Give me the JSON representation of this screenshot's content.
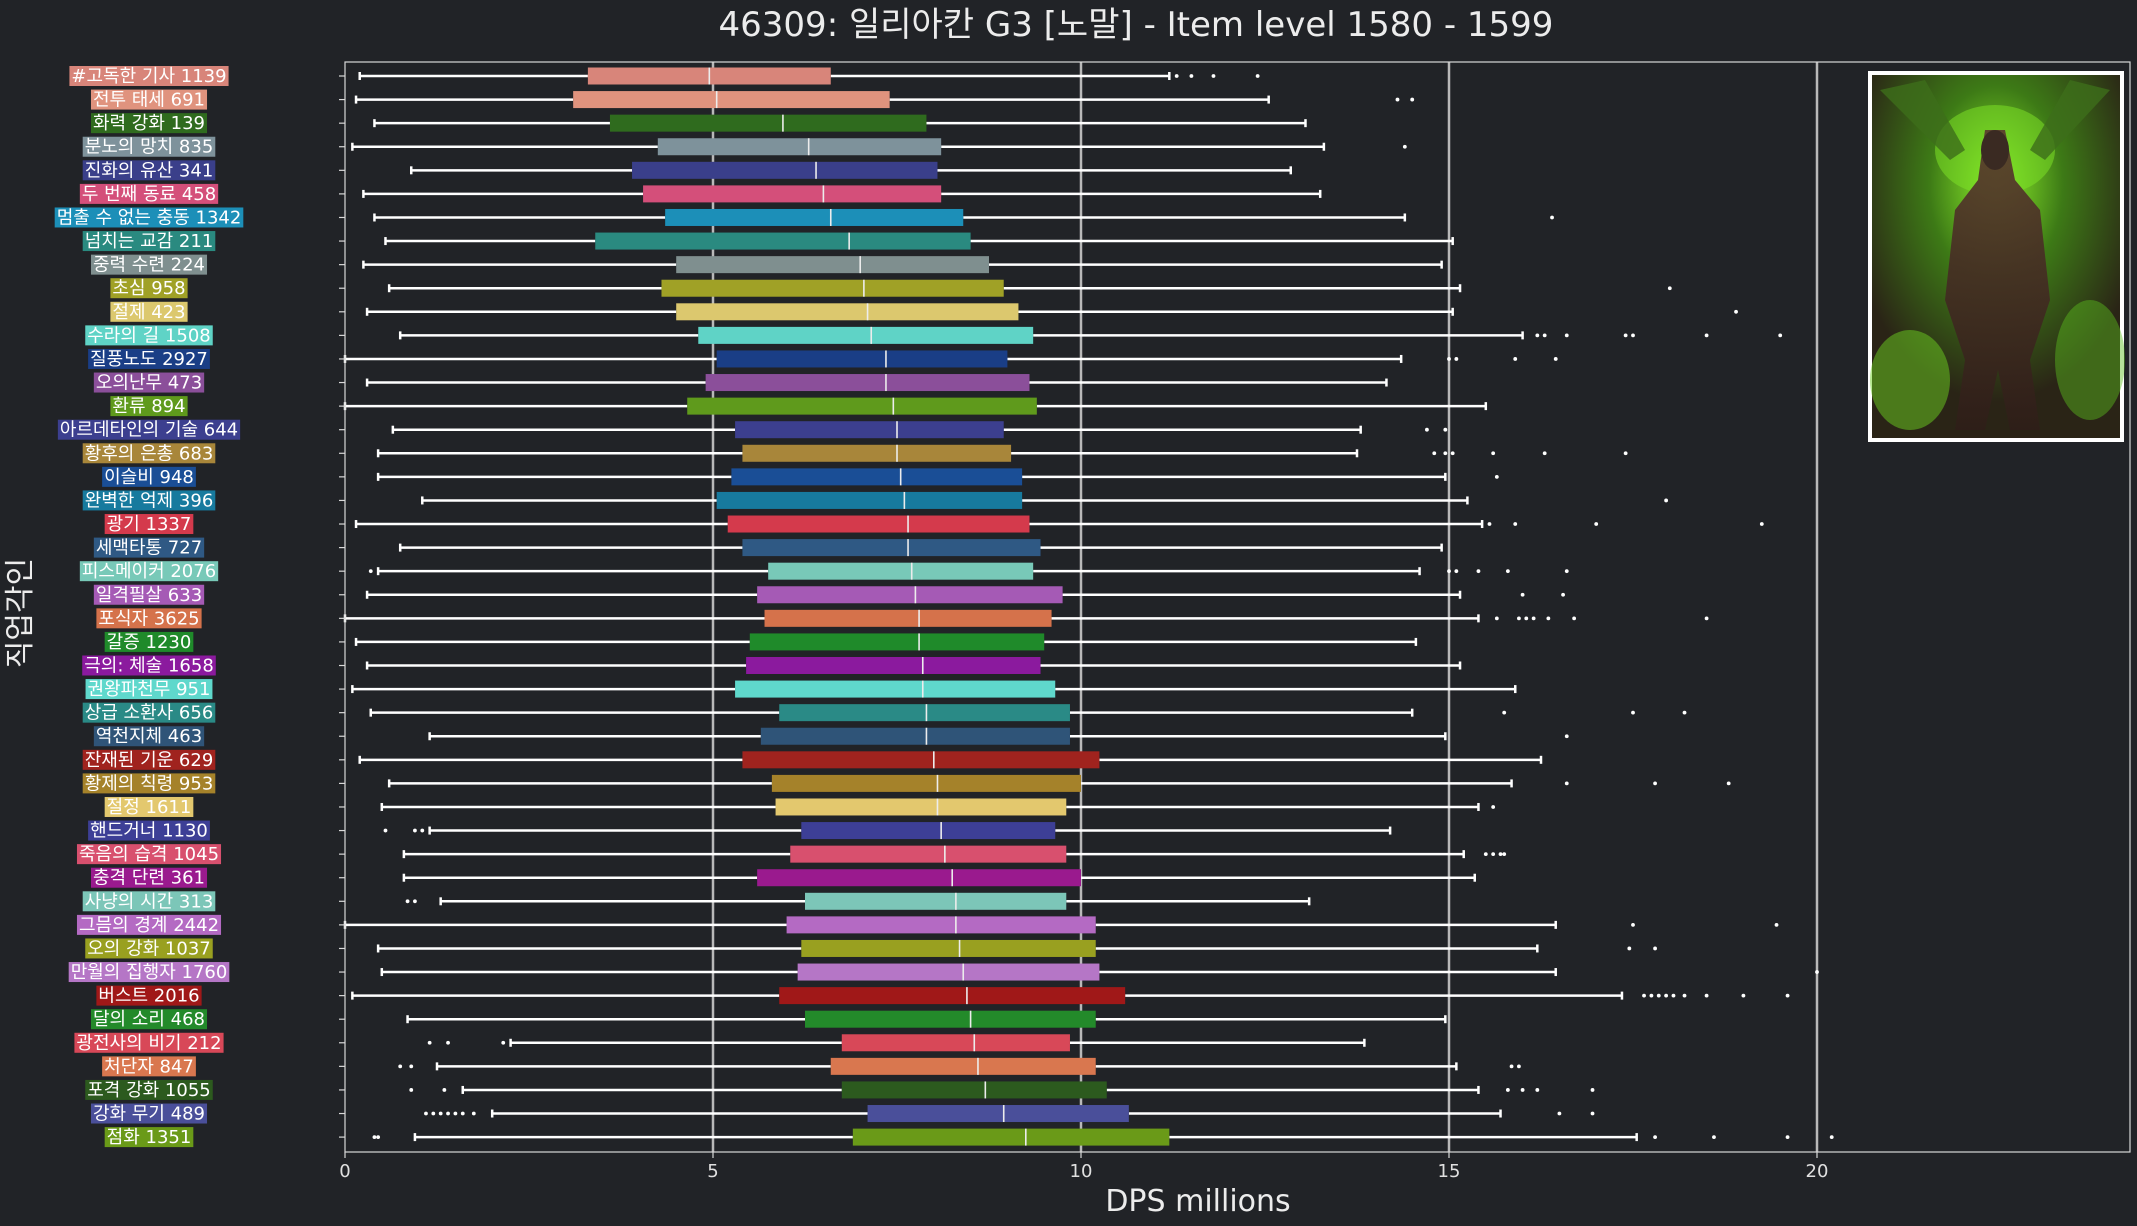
{
  "chart_data": {
    "type": "boxplot",
    "orientation": "horizontal",
    "title": "46309: 일리아칸 G3 [노말] - Item level 1580 - 1599",
    "xlabel": "DPS millions",
    "ylabel": "직업각인",
    "xlim": [
      0,
      24.3
    ],
    "xticks": [
      0,
      5,
      10,
      15,
      20
    ],
    "grid": "vertical lines at 5, 10, 15, 20",
    "legend": "none",
    "inset_image": "boss-portrait",
    "series": [
      {
        "label": "#고독한 기사 1139",
        "color": "#d8857a",
        "whislo": 0.2,
        "q1": 3.3,
        "med": 4.95,
        "q3": 6.6,
        "whishi": 11.2,
        "fliers": [
          11.3,
          11.5,
          11.8,
          12.4
        ]
      },
      {
        "label": "전투 태세 691",
        "color": "#e0937e",
        "whislo": 0.15,
        "q1": 3.1,
        "med": 5.05,
        "q3": 7.4,
        "whishi": 12.55,
        "fliers": [
          14.3,
          14.5
        ]
      },
      {
        "label": "화력 강화 139",
        "color": "#2f6b1e",
        "whislo": 0.4,
        "q1": 3.6,
        "med": 5.95,
        "q3": 7.9,
        "whishi": 13.05,
        "fliers": []
      },
      {
        "label": "분노의 망치 835",
        "color": "#7e929b",
        "whislo": 0.1,
        "q1": 4.25,
        "med": 6.3,
        "q3": 8.1,
        "whishi": 13.3,
        "fliers": [
          14.4
        ]
      },
      {
        "label": "진화의 유산 341",
        "color": "#3a3f8a",
        "whislo": 0.9,
        "q1": 3.9,
        "med": 6.4,
        "q3": 8.05,
        "whishi": 12.85,
        "fliers": []
      },
      {
        "label": "두 번째 동료 458",
        "color": "#d44f7a",
        "whislo": 0.25,
        "q1": 4.05,
        "med": 6.5,
        "q3": 8.1,
        "whishi": 13.25,
        "fliers": []
      },
      {
        "label": "멈출 수 없는 충동 1342",
        "color": "#1c8fb8",
        "whislo": 0.4,
        "q1": 4.35,
        "med": 6.6,
        "q3": 8.4,
        "whishi": 14.4,
        "fliers": [
          16.4
        ]
      },
      {
        "label": "넘치는 교감 211",
        "color": "#2a8a80",
        "whislo": 0.55,
        "q1": 3.4,
        "med": 6.85,
        "q3": 8.5,
        "whishi": 15.05,
        "fliers": []
      },
      {
        "label": "중력 수련 224",
        "color": "#7f8f8f",
        "whislo": 0.25,
        "q1": 4.5,
        "med": 7.0,
        "q3": 8.75,
        "whishi": 14.9,
        "fliers": []
      },
      {
        "label": "초심 958",
        "color": "#a0a126",
        "whislo": 0.6,
        "q1": 4.3,
        "med": 7.05,
        "q3": 8.95,
        "whishi": 15.15,
        "fliers": [
          18.0
        ]
      },
      {
        "label": "절제 423",
        "color": "#dcc86e",
        "whislo": 0.3,
        "q1": 4.5,
        "med": 7.1,
        "q3": 9.15,
        "whishi": 15.05,
        "fliers": [
          18.9
        ]
      },
      {
        "label": "수라의 길 1508",
        "color": "#5fd3c6",
        "whislo": 0.75,
        "q1": 4.8,
        "med": 7.15,
        "q3": 9.35,
        "whishi": 16.0,
        "fliers": [
          16.2,
          16.3,
          16.6,
          17.4,
          17.5,
          18.5,
          19.5
        ]
      },
      {
        "label": "질풍노도 2927",
        "color": "#1a3e86",
        "whislo": 0.0,
        "q1": 5.05,
        "med": 7.35,
        "q3": 9.0,
        "whishi": 14.35,
        "fliers": [
          15.0,
          15.1,
          15.9,
          16.45
        ]
      },
      {
        "label": "오의난무 473",
        "color": "#8b4f9a",
        "whislo": 0.3,
        "q1": 4.9,
        "med": 7.35,
        "q3": 9.3,
        "whishi": 14.15,
        "fliers": []
      },
      {
        "label": "환류 894",
        "color": "#5f9a1c",
        "whislo": 0.0,
        "q1": 4.65,
        "med": 7.45,
        "q3": 9.4,
        "whishi": 15.5,
        "fliers": []
      },
      {
        "label": "아르데타인의 기술 644",
        "color": "#3c3f8f",
        "whislo": 0.65,
        "q1": 5.3,
        "med": 7.5,
        "q3": 8.95,
        "whishi": 13.8,
        "fliers": [
          14.7,
          14.95
        ]
      },
      {
        "label": "황후의 은총 683",
        "color": "#a8863a",
        "whislo": 0.45,
        "q1": 5.4,
        "med": 7.5,
        "q3": 9.05,
        "whishi": 13.75,
        "fliers": [
          14.8,
          14.95,
          15.05,
          15.6,
          16.3,
          17.4
        ]
      },
      {
        "label": "이슬비 948",
        "color": "#1a4e96",
        "whislo": 0.45,
        "q1": 5.25,
        "med": 7.55,
        "q3": 9.2,
        "whishi": 14.95,
        "fliers": [
          15.65
        ]
      },
      {
        "label": "완벽한 억제 396",
        "color": "#177a9e",
        "whislo": 1.05,
        "q1": 5.05,
        "med": 7.6,
        "q3": 9.2,
        "whishi": 15.25,
        "fliers": [
          17.95
        ]
      },
      {
        "label": "광기 1337",
        "color": "#d43a4c",
        "whislo": 0.15,
        "q1": 5.2,
        "med": 7.65,
        "q3": 9.3,
        "whishi": 15.45,
        "fliers": [
          15.55,
          15.9,
          17.0,
          19.25
        ]
      },
      {
        "label": "세맥타통 727",
        "color": "#2f5984",
        "whislo": 0.75,
        "q1": 5.4,
        "med": 7.65,
        "q3": 9.45,
        "whishi": 14.9,
        "fliers": []
      },
      {
        "label": "피스메이커 2076",
        "color": "#78c9b8",
        "whislo": 0.45,
        "q1": 5.75,
        "med": 7.7,
        "q3": 9.35,
        "whishi": 14.6,
        "fliers": [
          0.35,
          15.0,
          15.1,
          15.4,
          15.8,
          16.6
        ]
      },
      {
        "label": "일격필살 633",
        "color": "#a55ab5",
        "whislo": 0.3,
        "q1": 5.6,
        "med": 7.75,
        "q3": 9.75,
        "whishi": 15.15,
        "fliers": [
          16.0,
          16.55
        ]
      },
      {
        "label": "포식자 3625",
        "color": "#d5724b",
        "whislo": 0.0,
        "q1": 5.7,
        "med": 7.8,
        "q3": 9.6,
        "whishi": 15.4,
        "fliers": [
          15.65,
          15.95,
          16.05,
          16.15,
          16.35,
          16.7,
          18.5
        ]
      },
      {
        "label": "갈증 1230",
        "color": "#1f8a2a",
        "whislo": 0.15,
        "q1": 5.5,
        "med": 7.8,
        "q3": 9.5,
        "whishi": 14.55,
        "fliers": []
      },
      {
        "label": "극의: 체술 1658",
        "color": "#8b1a9e",
        "whislo": 0.3,
        "q1": 5.45,
        "med": 7.85,
        "q3": 9.45,
        "whishi": 15.15,
        "fliers": []
      },
      {
        "label": "권왕파천무 951",
        "color": "#5fd8cc",
        "whislo": 0.1,
        "q1": 5.3,
        "med": 7.85,
        "q3": 9.65,
        "whishi": 15.9,
        "fliers": []
      },
      {
        "label": "상급 소환사 656",
        "color": "#2a8a86",
        "whislo": 0.35,
        "q1": 5.9,
        "med": 7.9,
        "q3": 9.85,
        "whishi": 14.5,
        "fliers": [
          15.75,
          17.5,
          18.2
        ]
      },
      {
        "label": "역천지체 463",
        "color": "#2f5478",
        "whislo": 1.15,
        "q1": 5.65,
        "med": 7.9,
        "q3": 9.85,
        "whishi": 14.95,
        "fliers": [
          16.6
        ]
      },
      {
        "label": "잔재된 기운 629",
        "color": "#a0231e",
        "whislo": 0.2,
        "q1": 5.4,
        "med": 8.0,
        "q3": 10.25,
        "whishi": 16.25,
        "fliers": []
      },
      {
        "label": "황제의 칙령 953",
        "color": "#a5822a",
        "whislo": 0.6,
        "q1": 5.8,
        "med": 8.05,
        "q3": 10.0,
        "whishi": 15.85,
        "fliers": [
          16.6,
          17.8,
          18.8
        ]
      },
      {
        "label": "절정 1611",
        "color": "#e3c86e",
        "whislo": 0.5,
        "q1": 5.85,
        "med": 8.05,
        "q3": 9.8,
        "whishi": 15.4,
        "fliers": [
          15.6
        ]
      },
      {
        "label": "핸드거너 1130",
        "color": "#3d3f96",
        "whislo": 1.15,
        "q1": 6.2,
        "med": 8.1,
        "q3": 9.65,
        "whishi": 14.2,
        "fliers": [
          0.55,
          0.95,
          1.05
        ]
      },
      {
        "label": "죽음의 습격 1045",
        "color": "#d8506e",
        "whislo": 0.8,
        "q1": 6.05,
        "med": 8.15,
        "q3": 9.8,
        "whishi": 15.2,
        "fliers": [
          15.5,
          15.6,
          15.7,
          15.75
        ]
      },
      {
        "label": "충격 단련 361",
        "color": "#9a1a8e",
        "whislo": 0.8,
        "q1": 5.6,
        "med": 8.25,
        "q3": 10.0,
        "whishi": 15.35,
        "fliers": []
      },
      {
        "label": "사냥의 시간 313",
        "color": "#7cc6b8",
        "whislo": 1.3,
        "q1": 6.25,
        "med": 8.3,
        "q3": 9.8,
        "whishi": 13.1,
        "fliers": [
          0.85,
          0.95
        ]
      },
      {
        "label": "그믐의 경계 2442",
        "color": "#b46ac3",
        "whislo": 0.0,
        "q1": 6.0,
        "med": 8.3,
        "q3": 10.2,
        "whishi": 16.45,
        "fliers": [
          17.5,
          19.45
        ]
      },
      {
        "label": "오의 강화 1037",
        "color": "#99a020",
        "whislo": 0.45,
        "q1": 6.2,
        "med": 8.35,
        "q3": 10.2,
        "whishi": 16.2,
        "fliers": [
          17.45,
          17.8
        ]
      },
      {
        "label": "만월의 집행자 1760",
        "color": "#b576c6",
        "whislo": 0.5,
        "q1": 6.15,
        "med": 8.4,
        "q3": 10.25,
        "whishi": 16.45,
        "fliers": [
          20.0
        ]
      },
      {
        "label": "버스트 2016",
        "color": "#a01818",
        "whislo": 0.1,
        "q1": 5.9,
        "med": 8.45,
        "q3": 10.6,
        "whishi": 17.35,
        "fliers": [
          17.65,
          17.75,
          17.85,
          17.95,
          18.05,
          18.2,
          18.5,
          19.0,
          19.6
        ]
      },
      {
        "label": "달의 소리 468",
        "color": "#238a2a",
        "whislo": 0.85,
        "q1": 6.25,
        "med": 8.5,
        "q3": 10.2,
        "whishi": 14.95,
        "fliers": []
      },
      {
        "label": "광전사의 비기 212",
        "color": "#d84858",
        "whislo": 2.25,
        "q1": 6.75,
        "med": 8.55,
        "q3": 9.85,
        "whishi": 13.85,
        "fliers": [
          1.15,
          1.4,
          2.15
        ]
      },
      {
        "label": "처단자 847",
        "color": "#d9774f",
        "whislo": 1.25,
        "q1": 6.6,
        "med": 8.6,
        "q3": 10.2,
        "whishi": 15.1,
        "fliers": [
          0.75,
          0.9,
          15.85,
          15.95
        ]
      },
      {
        "label": "포격 강화 1055",
        "color": "#2c5a1e",
        "whislo": 1.6,
        "q1": 6.75,
        "med": 8.7,
        "q3": 10.35,
        "whishi": 15.4,
        "fliers": [
          0.9,
          1.35,
          15.8,
          16.0,
          16.2,
          16.95
        ]
      },
      {
        "label": "강화 무기 489",
        "color": "#4a4f9a",
        "whislo": 2.0,
        "q1": 7.1,
        "med": 8.95,
        "q3": 10.65,
        "whishi": 15.7,
        "fliers": [
          1.1,
          1.2,
          1.3,
          1.4,
          1.5,
          1.6,
          1.75,
          16.5,
          16.95
        ]
      },
      {
        "label": "점화 1351",
        "color": "#6a9a18",
        "whislo": 0.95,
        "q1": 6.9,
        "med": 9.25,
        "q3": 11.2,
        "whishi": 17.55,
        "fliers": [
          0.4,
          0.45,
          17.8,
          18.6,
          19.6,
          20.2
        ]
      }
    ]
  }
}
